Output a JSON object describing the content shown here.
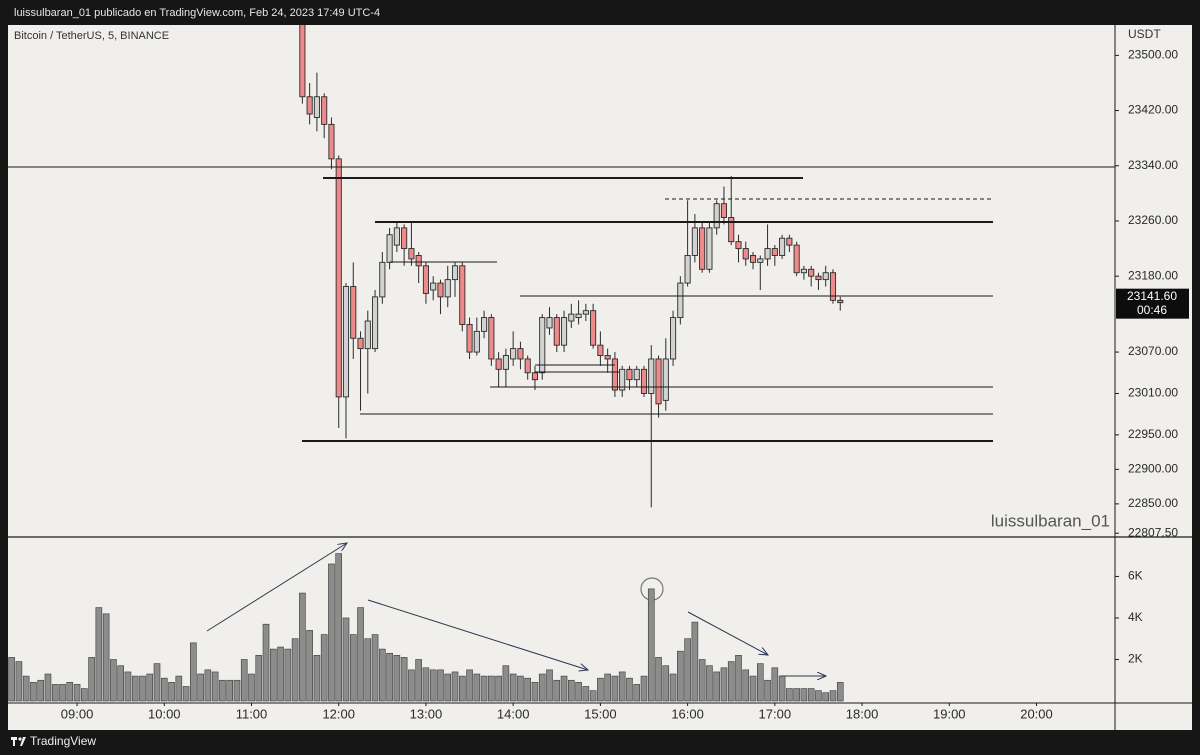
{
  "header": {
    "text": "luissulbaran_01 publicado en TradingView.com, Feb 24, 2023 17:49 UTC-4"
  },
  "footer": {
    "brand": "TradingView"
  },
  "chart_data": [
    {
      "type": "candlestick",
      "title": "Bitcoin / TetherUS, 5, BINANCE",
      "watermark": "luissulbaran_01",
      "y_unit": "USDT",
      "up_color": "#d2d2d2",
      "down_color": "#ef8a8a",
      "xlim": [
        492.5,
        1254
      ],
      "ylim": [
        22802,
        23544
      ],
      "yticks": [
        {
          "value": 23500,
          "label": "23500.00"
        },
        {
          "value": 23420,
          "label": "23420.00"
        },
        {
          "value": 23340,
          "label": "23340.00"
        },
        {
          "value": 23260,
          "label": "23260.00"
        },
        {
          "value": 23180,
          "label": "23180.00"
        },
        {
          "value": 23070,
          "label": "23070.00"
        },
        {
          "value": 23010,
          "label": "23010.00"
        },
        {
          "value": 22950,
          "label": "22950.00"
        },
        {
          "value": 22900,
          "label": "22900.00"
        },
        {
          "value": 22850,
          "label": "22850.00"
        },
        {
          "value": 22807.5,
          "label": "22807.50"
        }
      ],
      "last_price": {
        "value": 23141.6,
        "label": "23141.60"
      },
      "countdown": "00:46",
      "x": [
        695,
        700,
        705,
        710,
        715,
        720,
        725,
        730,
        735,
        740,
        745,
        750,
        755,
        760,
        765,
        770,
        775,
        780,
        785,
        790,
        795,
        800,
        805,
        810,
        815,
        820,
        825,
        830,
        835,
        840,
        845,
        850,
        855,
        860,
        865,
        870,
        875,
        880,
        885,
        890,
        895,
        900,
        905,
        910,
        915,
        920,
        925,
        930,
        935,
        940,
        945,
        950,
        955,
        960,
        965,
        970,
        975,
        980,
        985,
        990,
        995,
        1000,
        1005,
        1010,
        1015,
        1020,
        1025,
        1030,
        1035,
        1040,
        1045,
        1050,
        1055,
        1060,
        1065
      ],
      "open": [
        23580,
        23440,
        23410,
        23440,
        23400,
        23350,
        23005,
        23165,
        23090,
        23075,
        23075,
        23150,
        23200,
        23225,
        23250,
        23220,
        23210,
        23195,
        23160,
        23170,
        23150,
        23175,
        23195,
        23110,
        23070,
        23100,
        23120,
        23060,
        23045,
        23060,
        23075,
        23060,
        23040,
        23040,
        23105,
        23120,
        23080,
        23115,
        23120,
        23125,
        23130,
        23080,
        23065,
        23060,
        23015,
        23045,
        23030,
        23045,
        23010,
        23060,
        23000,
        23060,
        23120,
        23170,
        23210,
        23250,
        23190,
        23250,
        23285,
        23265,
        23230,
        23220,
        23210,
        23200,
        23205,
        23220,
        23210,
        23235,
        23225,
        23185,
        23190,
        23180,
        23175,
        23185,
        23145
      ],
      "high": [
        23600,
        23460,
        23475,
        23445,
        23410,
        23355,
        23170,
        23200,
        23100,
        23130,
        23160,
        23215,
        23250,
        23258,
        23255,
        23260,
        23215,
        23200,
        23180,
        23175,
        23195,
        23200,
        23200,
        23120,
        23120,
        23130,
        23125,
        23070,
        23075,
        23100,
        23085,
        23065,
        23050,
        23125,
        23135,
        23125,
        23130,
        23140,
        23145,
        23140,
        23140,
        23100,
        23075,
        23070,
        23050,
        23050,
        23050,
        23050,
        23080,
        23065,
        23090,
        23130,
        23180,
        23290,
        23270,
        23260,
        23260,
        23290,
        23310,
        23325,
        23240,
        23230,
        23215,
        23210,
        23255,
        23225,
        23240,
        23240,
        23230,
        23195,
        23195,
        23185,
        23195,
        23190,
        23150
      ],
      "low": [
        23430,
        23400,
        23390,
        23380,
        23335,
        22960,
        22945,
        23060,
        22985,
        23010,
        23070,
        23140,
        23190,
        23215,
        23195,
        23195,
        23170,
        23140,
        23145,
        23125,
        23135,
        23150,
        23100,
        23060,
        23065,
        23090,
        23050,
        23020,
        23020,
        23050,
        23045,
        23030,
        23015,
        23030,
        23095,
        23070,
        23070,
        23105,
        23110,
        23115,
        23075,
        23050,
        23040,
        23005,
        23005,
        23015,
        23020,
        23005,
        22845,
        22975,
        22985,
        23050,
        23110,
        23165,
        23200,
        23185,
        23185,
        23240,
        23255,
        23225,
        23200,
        23195,
        23190,
        23160,
        23195,
        23195,
        23205,
        23215,
        23180,
        23175,
        23165,
        23160,
        23165,
        23140,
        23130
      ],
      "close": [
        23440,
        23415,
        23440,
        23400,
        23350,
        23005,
        23165,
        23090,
        23075,
        23115,
        23150,
        23200,
        23240,
        23250,
        23220,
        23205,
        23195,
        23155,
        23170,
        23150,
        23175,
        23195,
        23110,
        23070,
        23100,
        23120,
        23060,
        23045,
        23065,
        23075,
        23060,
        23040,
        23030,
        23120,
        23120,
        23080,
        23120,
        23125,
        23125,
        23130,
        23080,
        23065,
        23060,
        23015,
        23045,
        23030,
        23045,
        23010,
        23060,
        22995,
        23060,
        23120,
        23170,
        23210,
        23250,
        23190,
        23250,
        23285,
        23265,
        23230,
        23220,
        23205,
        23200,
        23205,
        23220,
        23210,
        23235,
        23225,
        23185,
        23190,
        23180,
        23175,
        23185,
        23145,
        23141.6
      ]
    },
    {
      "type": "bar",
      "color": "#8c8c8c",
      "xlim": [
        492.5,
        1254
      ],
      "xticks": [
        {
          "value": 540,
          "label": "09:00"
        },
        {
          "value": 600,
          "label": "10:00"
        },
        {
          "value": 660,
          "label": "11:00"
        },
        {
          "value": 720,
          "label": "12:00"
        },
        {
          "value": 780,
          "label": "13:00"
        },
        {
          "value": 840,
          "label": "14:00"
        },
        {
          "value": 900,
          "label": "15:00"
        },
        {
          "value": 960,
          "label": "16:00"
        },
        {
          "value": 1020,
          "label": "17:00"
        },
        {
          "value": 1080,
          "label": "18:00"
        },
        {
          "value": 1140,
          "label": "19:00"
        },
        {
          "value": 1200,
          "label": "20:00"
        }
      ],
      "ylim": [
        0,
        7900
      ],
      "yticks": [
        {
          "value": 2000,
          "label": "2K"
        },
        {
          "value": 4000,
          "label": "4K"
        },
        {
          "value": 6000,
          "label": "6K"
        }
      ],
      "x": [
        495,
        500,
        505,
        510,
        515,
        520,
        525,
        530,
        535,
        540,
        545,
        550,
        555,
        560,
        565,
        570,
        575,
        580,
        585,
        590,
        595,
        600,
        605,
        610,
        615,
        620,
        625,
        630,
        635,
        640,
        645,
        650,
        655,
        660,
        665,
        670,
        675,
        680,
        685,
        690,
        695,
        700,
        705,
        710,
        715,
        720,
        725,
        730,
        735,
        740,
        745,
        750,
        755,
        760,
        765,
        770,
        775,
        780,
        785,
        790,
        795,
        800,
        805,
        810,
        815,
        820,
        825,
        830,
        835,
        840,
        845,
        850,
        855,
        860,
        865,
        870,
        875,
        880,
        885,
        890,
        895,
        900,
        905,
        910,
        915,
        920,
        925,
        930,
        935,
        940,
        945,
        950,
        955,
        960,
        965,
        970,
        975,
        980,
        985,
        990,
        995,
        1000,
        1005,
        1010,
        1015,
        1020,
        1025,
        1030,
        1035,
        1040,
        1045,
        1050,
        1055,
        1060,
        1065
      ],
      "values": [
        2100,
        1900,
        1200,
        900,
        1000,
        1300,
        800,
        800,
        900,
        800,
        600,
        2100,
        4500,
        4200,
        2000,
        1700,
        1400,
        1200,
        1200,
        1300,
        1800,
        1100,
        900,
        1200,
        700,
        2800,
        1300,
        1500,
        1400,
        1000,
        1000,
        1000,
        2000,
        1300,
        2200,
        3700,
        2500,
        2600,
        2500,
        3000,
        5200,
        3400,
        2200,
        3200,
        6600,
        7100,
        4000,
        3200,
        4500,
        3000,
        3200,
        2500,
        2300,
        2200,
        2100,
        1500,
        2000,
        1600,
        1500,
        1500,
        1300,
        1400,
        1200,
        1500,
        1300,
        1200,
        1200,
        1200,
        1700,
        1300,
        1200,
        1100,
        900,
        1300,
        1500,
        1000,
        1200,
        1000,
        900,
        700,
        500,
        1100,
        1300,
        1200,
        1400,
        1100,
        800,
        1200,
        5400,
        2100,
        1700,
        1300,
        2400,
        3000,
        3800,
        2000,
        1700,
        1400,
        1600,
        1900,
        2200,
        1500,
        1200,
        1800,
        1000,
        1600,
        1200,
        600,
        600,
        600,
        600,
        500,
        400,
        500,
        900
      ]
    }
  ]
}
